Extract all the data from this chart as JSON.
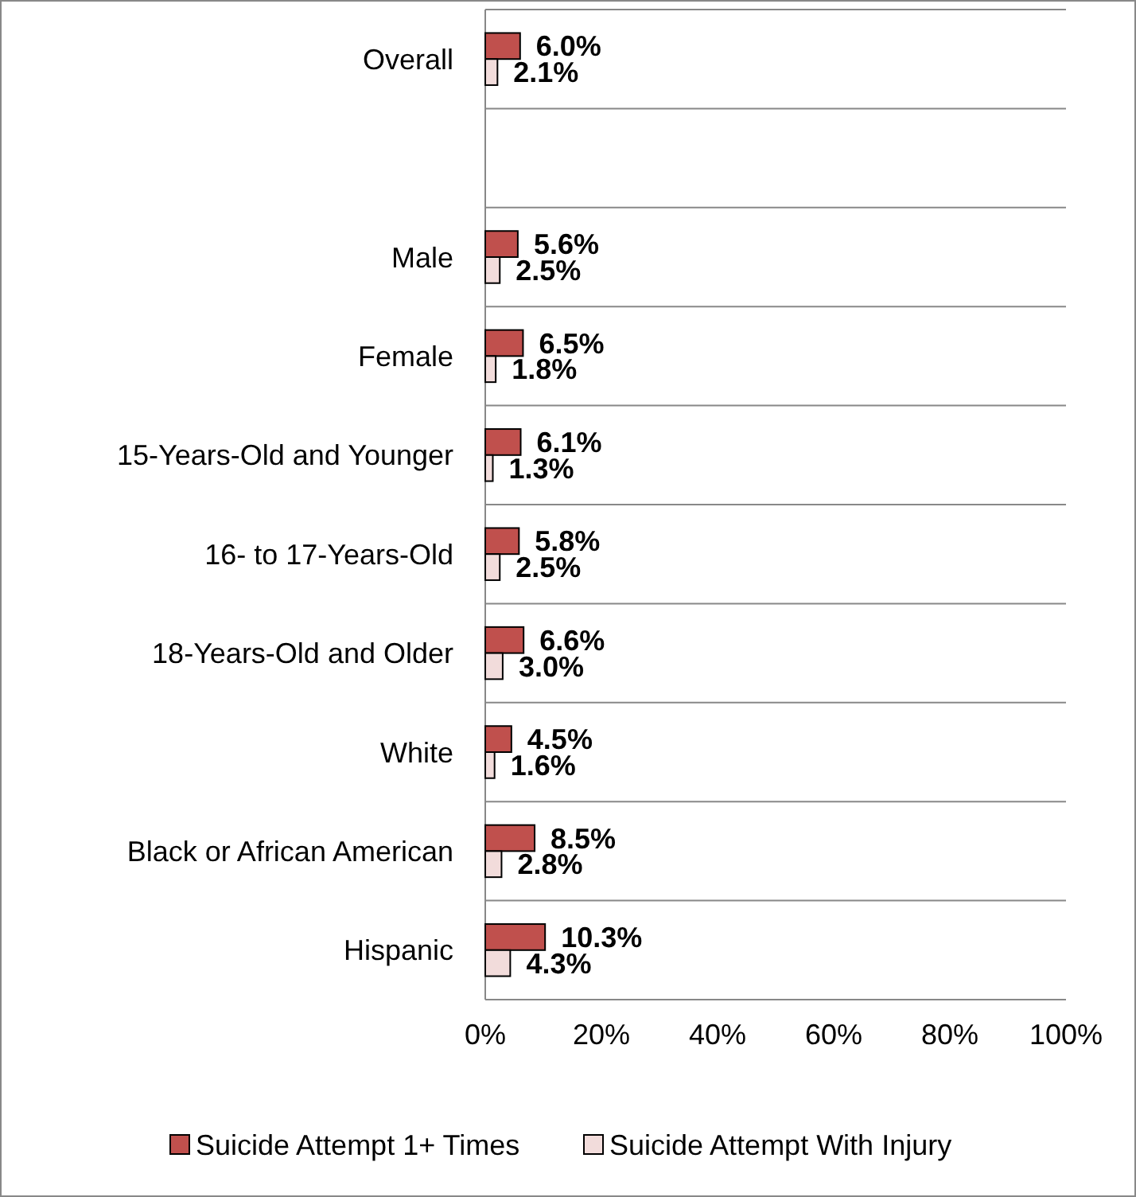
{
  "chart_data": {
    "type": "bar",
    "orientation": "horizontal",
    "categories": [
      "Overall",
      null,
      "Male",
      "Female",
      "15-Years-Old and Younger",
      "16- to 17-Years-Old",
      "18-Years-Old and Older",
      "White",
      "Black or African American",
      "Hispanic"
    ],
    "series": [
      {
        "name": "Suicide Attempt 1+ Times",
        "color": "#c0504d",
        "values": [
          6.0,
          null,
          5.6,
          6.5,
          6.1,
          5.8,
          6.6,
          4.5,
          8.5,
          10.3
        ],
        "value_labels": [
          "6.0%",
          null,
          "5.6%",
          "6.5%",
          "6.1%",
          "5.8%",
          "6.6%",
          "4.5%",
          "8.5%",
          "10.3%"
        ]
      },
      {
        "name": "Suicide Attempt With Injury",
        "color": "#f2dcdb",
        "values": [
          2.1,
          null,
          2.5,
          1.8,
          1.3,
          2.5,
          3.0,
          1.6,
          2.8,
          4.3
        ],
        "value_labels": [
          "2.1%",
          null,
          "2.5%",
          "1.8%",
          "1.3%",
          "2.5%",
          "3.0%",
          "1.6%",
          "2.8%",
          "4.3%"
        ]
      }
    ],
    "xlim": [
      0,
      100
    ],
    "xticks": [
      {
        "value": 0,
        "label": "0%"
      },
      {
        "value": 20,
        "label": "20%"
      },
      {
        "value": 40,
        "label": "40%"
      },
      {
        "value": 60,
        "label": "60%"
      },
      {
        "value": 80,
        "label": "80%"
      },
      {
        "value": 100,
        "label": "100%"
      }
    ],
    "grid": "y",
    "legend": "bottom"
  }
}
